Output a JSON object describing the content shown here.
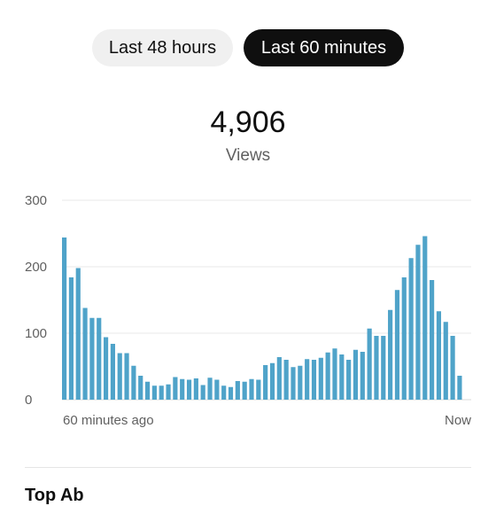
{
  "tabs": [
    {
      "label": "Last 48 hours",
      "active": false
    },
    {
      "label": "Last 60 minutes",
      "active": true
    }
  ],
  "metric": {
    "value": "4,906",
    "label": "Views"
  },
  "chart_data": {
    "type": "bar",
    "title": "",
    "xlabel": "",
    "ylabel": "",
    "ylim": [
      0,
      300
    ],
    "yticks": [
      0,
      100,
      200,
      300
    ],
    "x_start_label": "60 minutes ago",
    "x_end_label": "Now",
    "bar_color": "#4fa3c9",
    "grid": true,
    "values": [
      244,
      184,
      198,
      138,
      123,
      123,
      94,
      84,
      70,
      70,
      51,
      36,
      27,
      21,
      21,
      23,
      34,
      31,
      30,
      32,
      22,
      33,
      30,
      21,
      19,
      28,
      27,
      31,
      30,
      52,
      55,
      64,
      60,
      49,
      51,
      61,
      60,
      63,
      71,
      77,
      68,
      60,
      75,
      72,
      107,
      96,
      96,
      135,
      165,
      184,
      213,
      233,
      246,
      180,
      133,
      117,
      96,
      36,
      0
    ]
  },
  "section": {
    "title": "Top Ab"
  }
}
